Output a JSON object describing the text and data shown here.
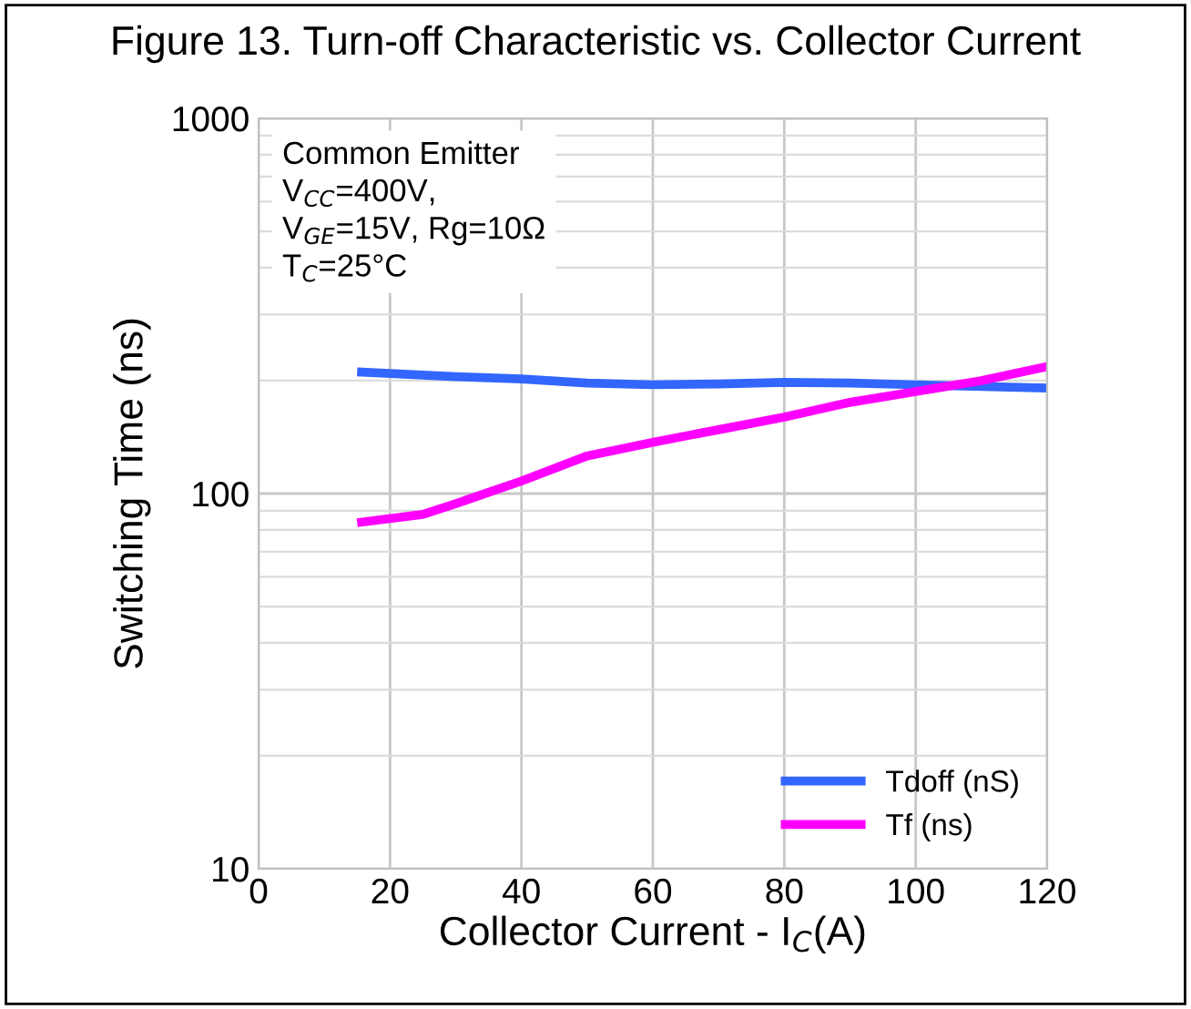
{
  "chart_data": {
    "type": "line",
    "title": "Figure 13. Turn-off Characteristic vs. Collector Current",
    "xlabel": "Collector Current - I$_{C}$(A)",
    "ylabel": "Switching Time (ns)",
    "x": [
      15,
      25,
      30,
      40,
      50,
      60,
      70,
      80,
      90,
      100,
      110,
      120
    ],
    "series": [
      {
        "name": "Tdoff (nS)",
        "color": "#3366ff",
        "values": [
          211,
          207,
          205,
          202,
          197,
          195,
          196,
          198,
          197,
          195,
          193,
          191
        ]
      },
      {
        "name": "Tf (ns)",
        "color": "#ff00ff",
        "values": [
          83.6,
          88,
          94,
          108,
          126,
          137,
          148,
          160,
          175,
          187,
          200,
          218
        ]
      }
    ],
    "xlim": [
      0,
      120
    ],
    "xticks": [
      0,
      20,
      40,
      60,
      80,
      100,
      120
    ],
    "ylim": [
      10,
      1000
    ],
    "yticks": [
      10,
      100,
      1000
    ],
    "log": "y",
    "grid": true,
    "legend": "bottom right",
    "annotations": [
      "Common Emitter",
      "V$_{CC}$=400V,",
      "V$_{GE}$=15V, Rg=10Ω",
      "T$_{C}$=25°C"
    ]
  }
}
